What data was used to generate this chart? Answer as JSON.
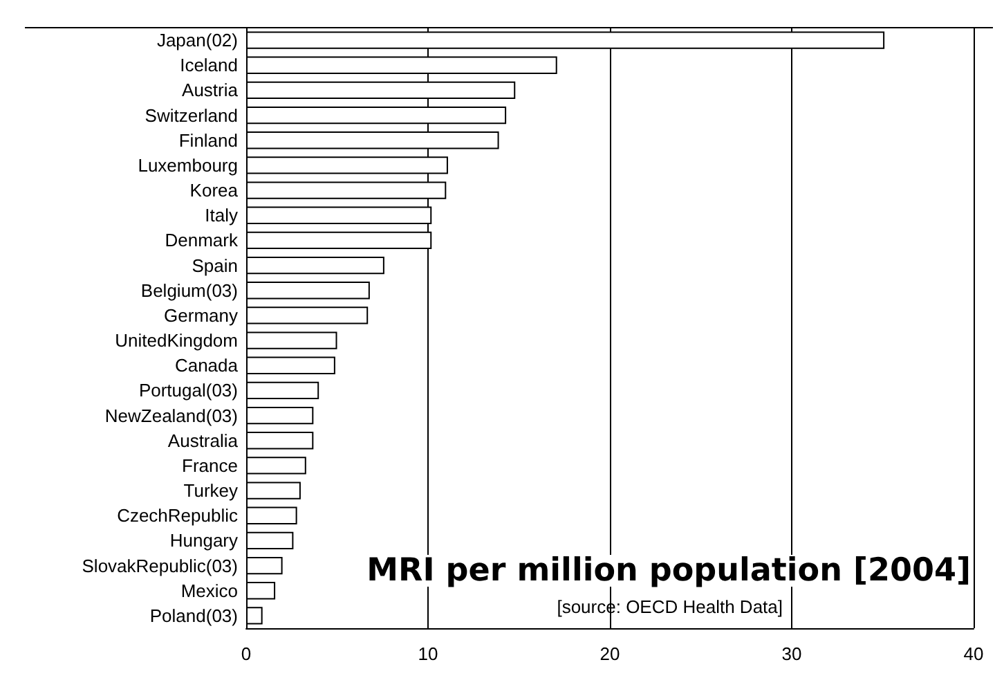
{
  "chart_data": {
    "type": "bar",
    "orientation": "horizontal",
    "title": "MRI per million population [2004]",
    "annotations": [
      "[source: OECD Health Data]"
    ],
    "categories": [
      "Japan(02)",
      "Iceland",
      "Austria",
      "Switzerland",
      "Finland",
      "Luxembourg",
      "Korea",
      "Italy",
      "Denmark",
      "Spain",
      "Belgium(03)",
      "Germany",
      "UnitedKingdom",
      "Canada",
      "Portugal(03)",
      "NewZealand(03)",
      "Australia",
      "France",
      "Turkey",
      "CzechRepublic",
      "Hungary",
      "SlovakRepublic(03)",
      "Mexico",
      "Poland(03)"
    ],
    "values": [
      35.1,
      17.1,
      14.8,
      14.3,
      13.9,
      11.1,
      11.0,
      10.2,
      10.2,
      7.6,
      6.8,
      6.7,
      5.0,
      4.9,
      4.0,
      3.7,
      3.7,
      3.3,
      3.0,
      2.8,
      2.6,
      2.0,
      1.6,
      0.9
    ],
    "color": "#ffffff",
    "xlim": [
      0,
      40
    ],
    "xticks": [
      0,
      10,
      20,
      30,
      40
    ],
    "grid": "x"
  }
}
